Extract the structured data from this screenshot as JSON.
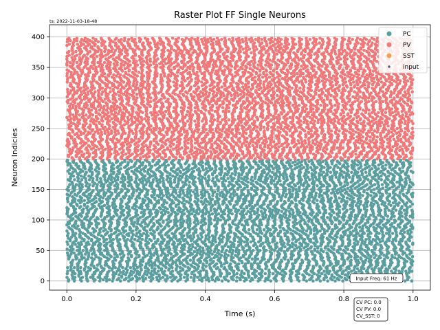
{
  "timestamp": "ts: 2022-11-03-18-48",
  "input_freq_label": "Input Freq: 61 Hz",
  "cv_lines": [
    "CV PC: 0.0",
    "CV PV: 0.0",
    "CV_SST: 0"
  ],
  "colors": {
    "PC": "#5a9ea0",
    "PV": "#f07878",
    "SST": "#f5a04a",
    "input": "#4a6a84",
    "grid": "#b0b0b0"
  },
  "chart_data": {
    "type": "scatter",
    "title": "Raster Plot FF Single Neurons",
    "xlabel": "Time (s)",
    "ylabel": "Neuron Indicies",
    "xlim": [
      -0.05,
      1.05
    ],
    "ylim": [
      -15,
      420
    ],
    "xticks": [
      0.0,
      0.2,
      0.4,
      0.6,
      0.8,
      1.0
    ],
    "xtick_labels": [
      "0.0",
      "0.2",
      "0.4",
      "0.6",
      "0.8",
      "1.0"
    ],
    "yticks": [
      0,
      50,
      100,
      150,
      200,
      250,
      300,
      350,
      400
    ],
    "ytick_labels": [
      "0",
      "50",
      "100",
      "150",
      "200",
      "250",
      "300",
      "350",
      "400"
    ],
    "grid": true,
    "legend_position": "top-right",
    "series": [
      {
        "name": "PC",
        "neuron_range": [
          0,
          199
        ],
        "time_range": [
          0.0,
          1.0
        ]
      },
      {
        "name": "PV",
        "neuron_range": [
          200,
          399
        ],
        "time_range": [
          0.0,
          1.0
        ]
      },
      {
        "name": "SST",
        "neuron_range": [],
        "time_range": []
      },
      {
        "name": "input",
        "neuron_range": [],
        "time_range": []
      }
    ]
  }
}
